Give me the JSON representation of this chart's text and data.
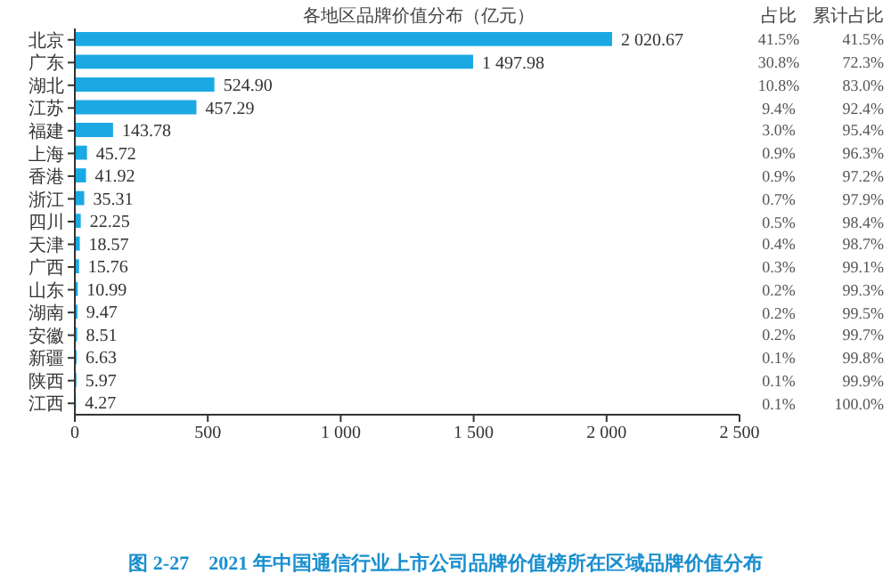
{
  "chart_data": {
    "type": "bar",
    "orientation": "horizontal",
    "title": "各地区品牌价值分布（亿元）",
    "subtitle": "图 2-27　2021 年中国通信行业上市公司品牌价值榜所在区域品牌价值分布",
    "categories": [
      "北京",
      "广东",
      "湖北",
      "江苏",
      "福建",
      "上海",
      "香港",
      "浙江",
      "四川",
      "天津",
      "广西",
      "山东",
      "湖南",
      "安徽",
      "新疆",
      "陕西",
      "江西"
    ],
    "values": [
      2020.67,
      1497.98,
      524.9,
      457.29,
      143.78,
      45.72,
      41.92,
      35.31,
      22.25,
      18.57,
      15.76,
      10.99,
      9.47,
      8.51,
      6.63,
      5.97,
      4.27
    ],
    "value_labels": [
      "2 020.67",
      "1 497.98",
      "524.90",
      "457.29",
      "143.78",
      "45.72",
      "41.92",
      "35.31",
      "22.25",
      "18.57",
      "15.76",
      "10.99",
      "9.47",
      "8.51",
      "6.63",
      "5.97",
      "4.27"
    ],
    "color": "#1ba9e4",
    "xlim": [
      0,
      2500
    ],
    "xticks": [
      0,
      500,
      {
        "value": 1000,
        "label": "1 000"
      },
      {
        "value": 1500,
        "label": "1 500"
      },
      {
        "value": 2000,
        "label": "2 000"
      },
      {
        "value": 2500,
        "label": "2 500"
      }
    ],
    "grid": false,
    "legend": false,
    "annotations": [
      "占比",
      "累计占比",
      "41.5%",
      "41.5%",
      "30.8%",
      "72.3%",
      "10.8%",
      "83.0%",
      "9.4%",
      "92.4%",
      "3.0%",
      "95.4%",
      "0.9%",
      "96.3%",
      "0.9%",
      "97.2%",
      "0.7%",
      "97.9%",
      "0.5%",
      "98.4%",
      "0.4%",
      "98.7%",
      "0.3%",
      "99.1%",
      "0.2%",
      "99.3%",
      "0.2%",
      "99.5%",
      "0.2%",
      "99.7%",
      "0.1%",
      "99.8%",
      "0.1%",
      "99.9%",
      "0.1%",
      "100.0%"
    ]
  }
}
